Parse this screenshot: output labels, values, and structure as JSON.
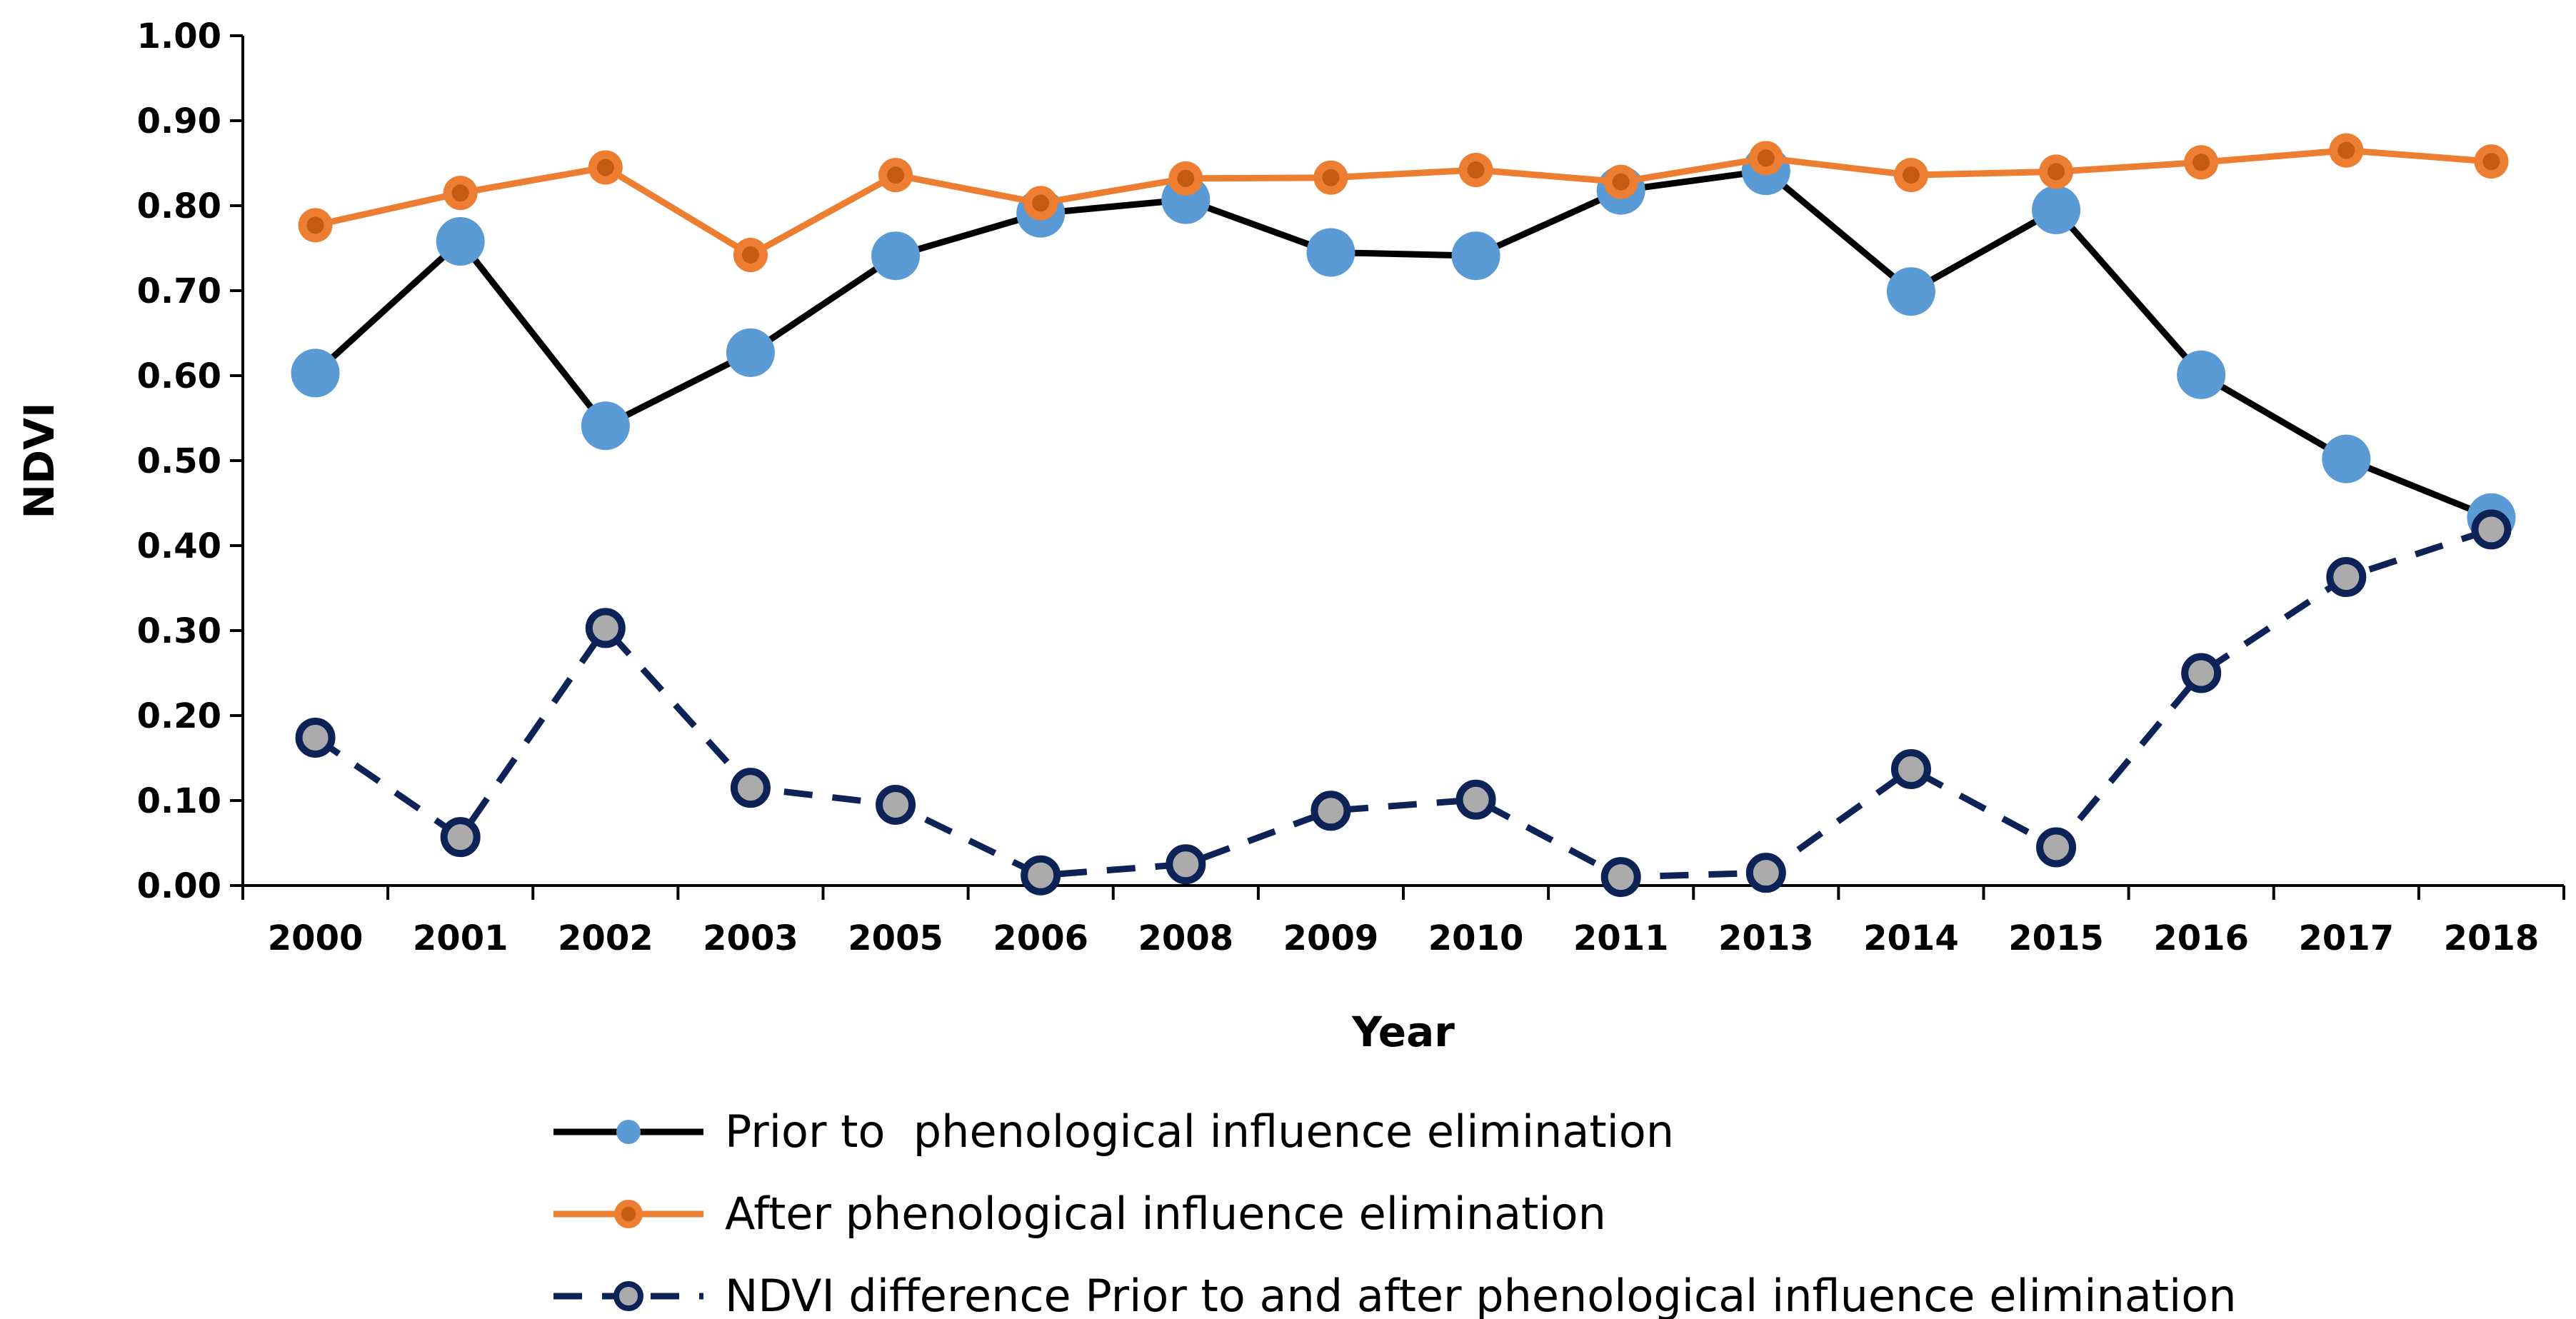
{
  "chart_data": {
    "type": "line",
    "title": "",
    "xlabel": "Year",
    "ylabel": "NDVI",
    "categories": [
      "2000",
      "2001",
      "2002",
      "2003",
      "2005",
      "2006",
      "2008",
      "2009",
      "2010",
      "2011",
      "2013",
      "2014",
      "2015",
      "2016",
      "2017",
      "2018"
    ],
    "y_ticks": [
      "0.00",
      "0.10",
      "0.20",
      "0.30",
      "0.40",
      "0.50",
      "0.60",
      "0.70",
      "0.80",
      "0.90",
      "1.00"
    ],
    "ylim": [
      0,
      1
    ],
    "grid": false,
    "legend_position": "bottom",
    "series": [
      {
        "name": "Prior to  phenological influence elimination",
        "values": [
          0.603,
          0.758,
          0.541,
          0.627,
          0.741,
          0.791,
          0.807,
          0.745,
          0.741,
          0.818,
          0.841,
          0.699,
          0.795,
          0.601,
          0.502,
          0.433
        ],
        "line_color": "#000000",
        "marker_color": "#5B9BD5",
        "line_style": "solid"
      },
      {
        "name": "After phenological influence elimination",
        "values": [
          0.777,
          0.815,
          0.845,
          0.742,
          0.836,
          0.803,
          0.832,
          0.833,
          0.842,
          0.828,
          0.856,
          0.836,
          0.84,
          0.851,
          0.865,
          0.852
        ],
        "line_color": "#ED7D31",
        "marker_color": "#ED7D31",
        "marker_center": "#C55A11",
        "line_style": "solid"
      },
      {
        "name": "NDVI difference Prior to and after phenological influence elimination",
        "values": [
          0.174,
          0.057,
          0.303,
          0.115,
          0.095,
          0.012,
          0.025,
          0.088,
          0.101,
          0.01,
          0.015,
          0.137,
          0.045,
          0.25,
          0.363,
          0.419
        ],
        "line_color": "#0D2357",
        "marker_color": "#ABABAB",
        "marker_edge": "#0D2357",
        "line_style": "dashed"
      }
    ]
  }
}
